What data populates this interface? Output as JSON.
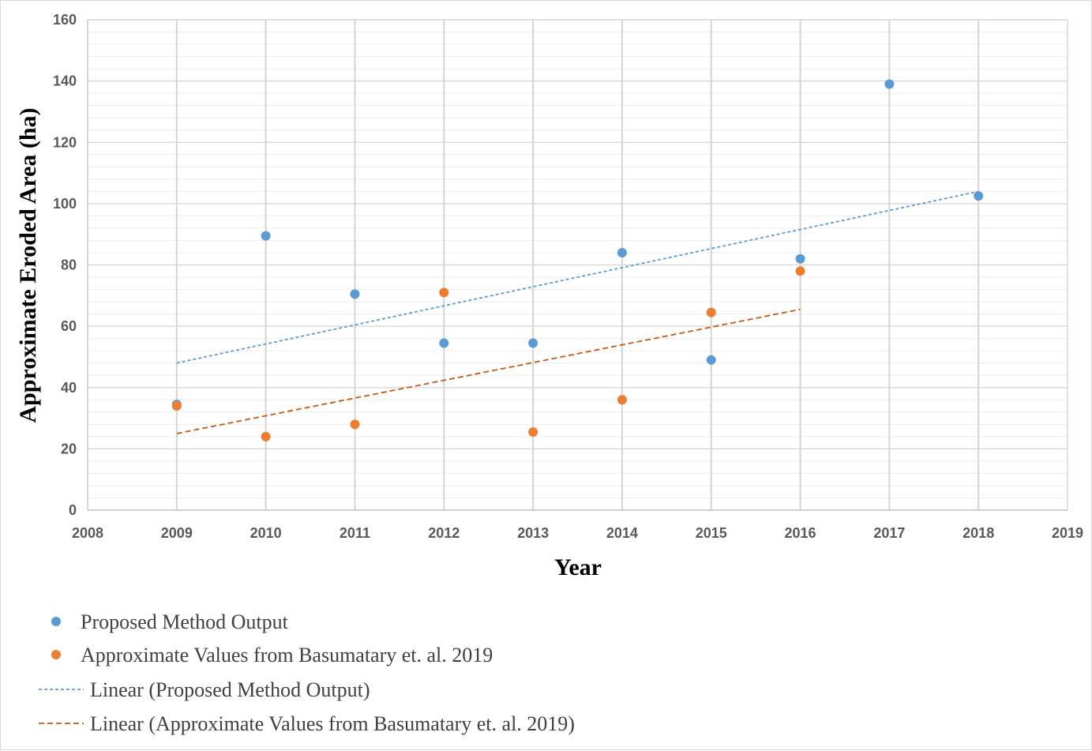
{
  "chart_data": {
    "type": "scatter",
    "xlabel": "Year",
    "ylabel": "Approximate Eroded Area (ha)",
    "xlim": [
      2008,
      2019
    ],
    "ylim": [
      0,
      160
    ],
    "x_ticks": [
      "2008",
      "2009",
      "2010",
      "2011",
      "2012",
      "2013",
      "2014",
      "2015",
      "2016",
      "2017",
      "2018",
      "2019"
    ],
    "y_ticks": [
      "0",
      "20",
      "40",
      "60",
      "80",
      "100",
      "120",
      "140",
      "160"
    ],
    "grid": true,
    "legend_position": "bottom",
    "series": [
      {
        "name": "Proposed Method Output",
        "color": "#5b9bd5",
        "x": [
          2009,
          2010,
          2011,
          2012,
          2013,
          2014,
          2015,
          2016,
          2017,
          2018
        ],
        "y": [
          34.5,
          89.5,
          70.5,
          54.5,
          54.5,
          84,
          49,
          82,
          139,
          102.5
        ]
      },
      {
        "name": "Approximate Values from Basumatary et. al. 2019",
        "color": "#ed7d31",
        "x": [
          2009,
          2010,
          2011,
          2012,
          2013,
          2014,
          2015,
          2016
        ],
        "y": [
          34,
          24,
          28,
          71,
          25.5,
          36,
          64.5,
          78
        ]
      }
    ],
    "trendlines": [
      {
        "name": "Linear (Proposed Method Output)",
        "color": "#5b9bd5",
        "x": [
          2009,
          2018
        ],
        "y": [
          48,
          104
        ]
      },
      {
        "name": "Linear (Approximate Values from Basumatary et. al. 2019)",
        "color": "#c55a11",
        "x": [
          2009,
          2016
        ],
        "y": [
          25,
          65.5
        ]
      }
    ]
  }
}
